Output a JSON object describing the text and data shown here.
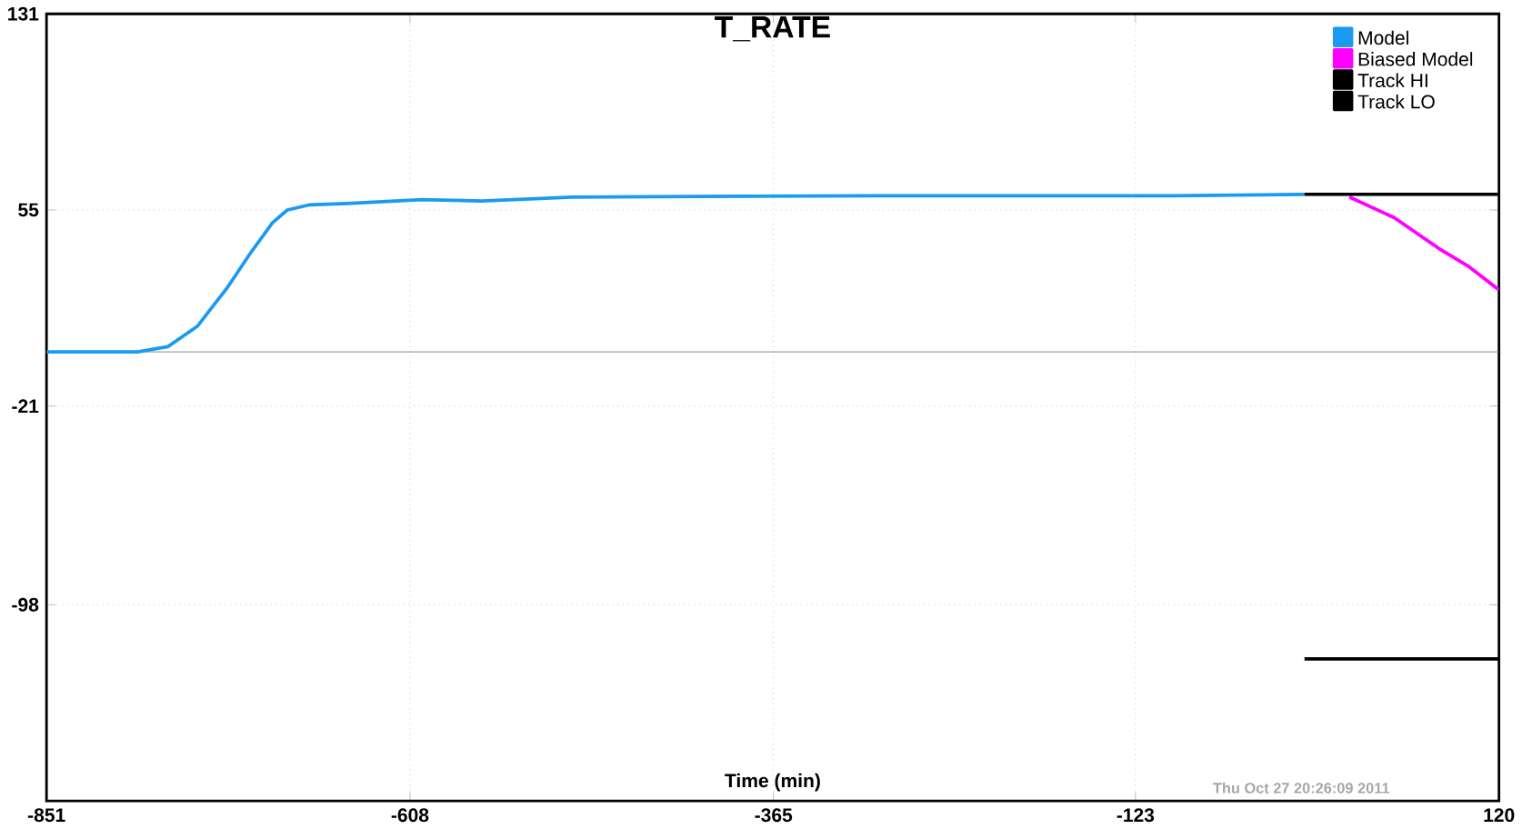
{
  "chart_data": {
    "type": "line",
    "title": "T_RATE",
    "xlabel": "Time (min)",
    "xlim": [
      -851,
      120
    ],
    "xticks": [
      -851,
      -608,
      -365,
      -123,
      120
    ],
    "ylim": [
      -174,
      131
    ],
    "yticks": [
      131,
      55,
      -21,
      -98
    ],
    "grid": true,
    "legend": "top right",
    "line_style": "solid",
    "ref_lines": [
      {
        "axis": "y",
        "value": 0,
        "color": "#808080"
      }
    ],
    "annotations": [
      "Thu Oct 27 20:26:09 2011"
    ],
    "series": [
      {
        "name": "Model",
        "color": "#1a9af0",
        "x": [
          -851,
          -790,
          -770,
          -750,
          -730,
          -715,
          -700,
          -690,
          -675,
          -650,
          -600,
          -560,
          -500,
          -300,
          -100,
          -10
        ],
        "values": [
          0,
          0,
          2,
          10,
          25,
          38,
          50,
          55,
          57,
          57.5,
          59,
          58.5,
          60,
          60.5,
          60.5,
          61
        ]
      },
      {
        "name": "Biased Model",
        "color": "#ff00ff",
        "x": [
          20,
          50,
          80,
          100,
          120
        ],
        "values": [
          60,
          52,
          40,
          33,
          24
        ]
      },
      {
        "name": "Track HI",
        "color": "#000000",
        "x": [
          -10,
          120
        ],
        "values": [
          61,
          61
        ]
      },
      {
        "name": "Track LO",
        "color": "#000000",
        "x": [
          -10,
          120
        ],
        "values": [
          -119,
          -119
        ]
      }
    ]
  }
}
